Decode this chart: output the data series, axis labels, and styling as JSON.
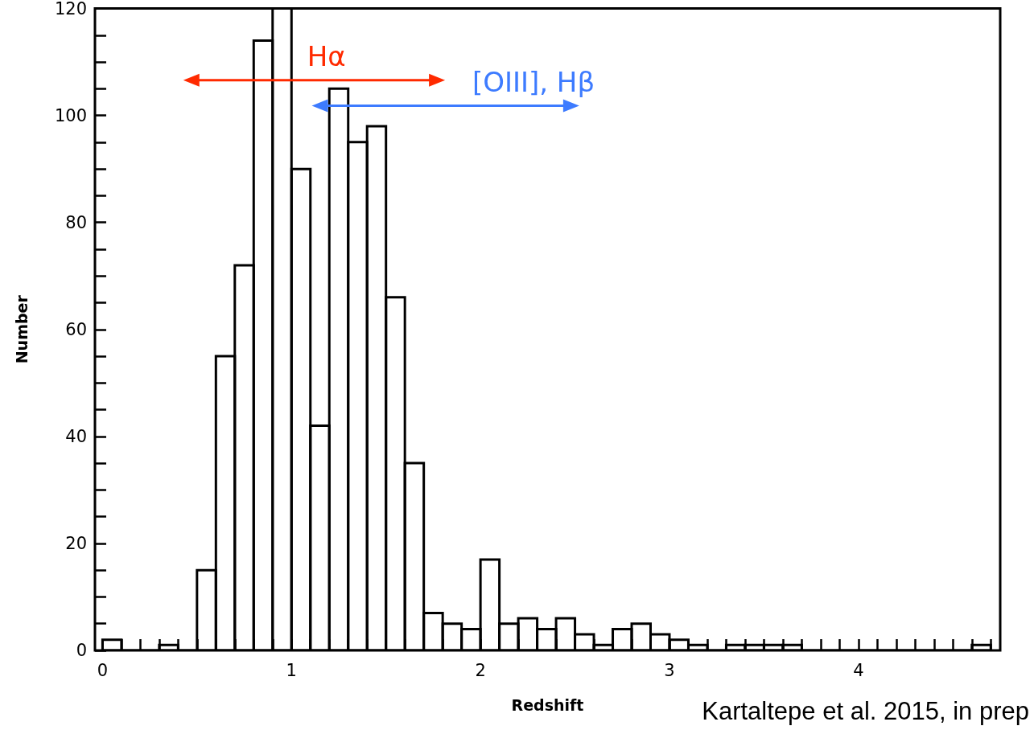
{
  "chart_data": {
    "type": "histogram",
    "xlabel": "Redshift",
    "ylabel": "Number",
    "bins": [
      0,
      0.1,
      0.2,
      0.3,
      0.4,
      0.5,
      0.6,
      0.7,
      0.8,
      0.9,
      1.0,
      1.1,
      1.2,
      1.3,
      1.4,
      1.5,
      1.6,
      1.7,
      1.8,
      1.9,
      2.0,
      2.1,
      2.2,
      2.3,
      2.4,
      2.5,
      2.6,
      2.7,
      2.8,
      2.9,
      3.0,
      3.1,
      3.2,
      3.3,
      3.4,
      3.5,
      3.6,
      3.7,
      3.8,
      3.9,
      4.0,
      4.1,
      4.2,
      4.3,
      4.4,
      4.5,
      4.6,
      4.7
    ],
    "values": [
      2,
      0,
      0,
      1,
      0,
      15,
      55,
      72,
      114,
      120,
      90,
      42,
      105,
      95,
      98,
      66,
      35,
      7,
      5,
      4,
      17,
      5,
      6,
      4,
      6,
      3,
      1,
      4,
      5,
      3,
      2,
      1,
      0,
      1,
      1,
      1,
      1,
      0,
      0,
      0,
      0,
      0,
      0,
      0,
      0,
      0,
      1
    ],
    "color": "#000000",
    "series": [
      {
        "type": "line",
        "color": "#ff2a00",
        "x": [
          0.47,
          1.77
        ],
        "values": [
          106.6,
          106.6
        ],
        "marker": "triangle"
      },
      {
        "type": "line",
        "color": "#3d7bff",
        "x": [
          1.15,
          2.48
        ],
        "values": [
          101.8,
          101.8
        ],
        "marker": "triangle"
      }
    ],
    "annotations": [
      "Hα",
      "[OIII], Hβ",
      "Kartaltepe et al. 2015, in prep"
    ],
    "xlim": [
      -0.04,
      4.75
    ],
    "xticks": [
      0,
      1,
      2,
      3,
      4
    ],
    "ylim": [
      0,
      120
    ],
    "yticks": [
      0,
      20,
      40,
      60,
      80,
      100,
      120
    ],
    "grid": false
  }
}
